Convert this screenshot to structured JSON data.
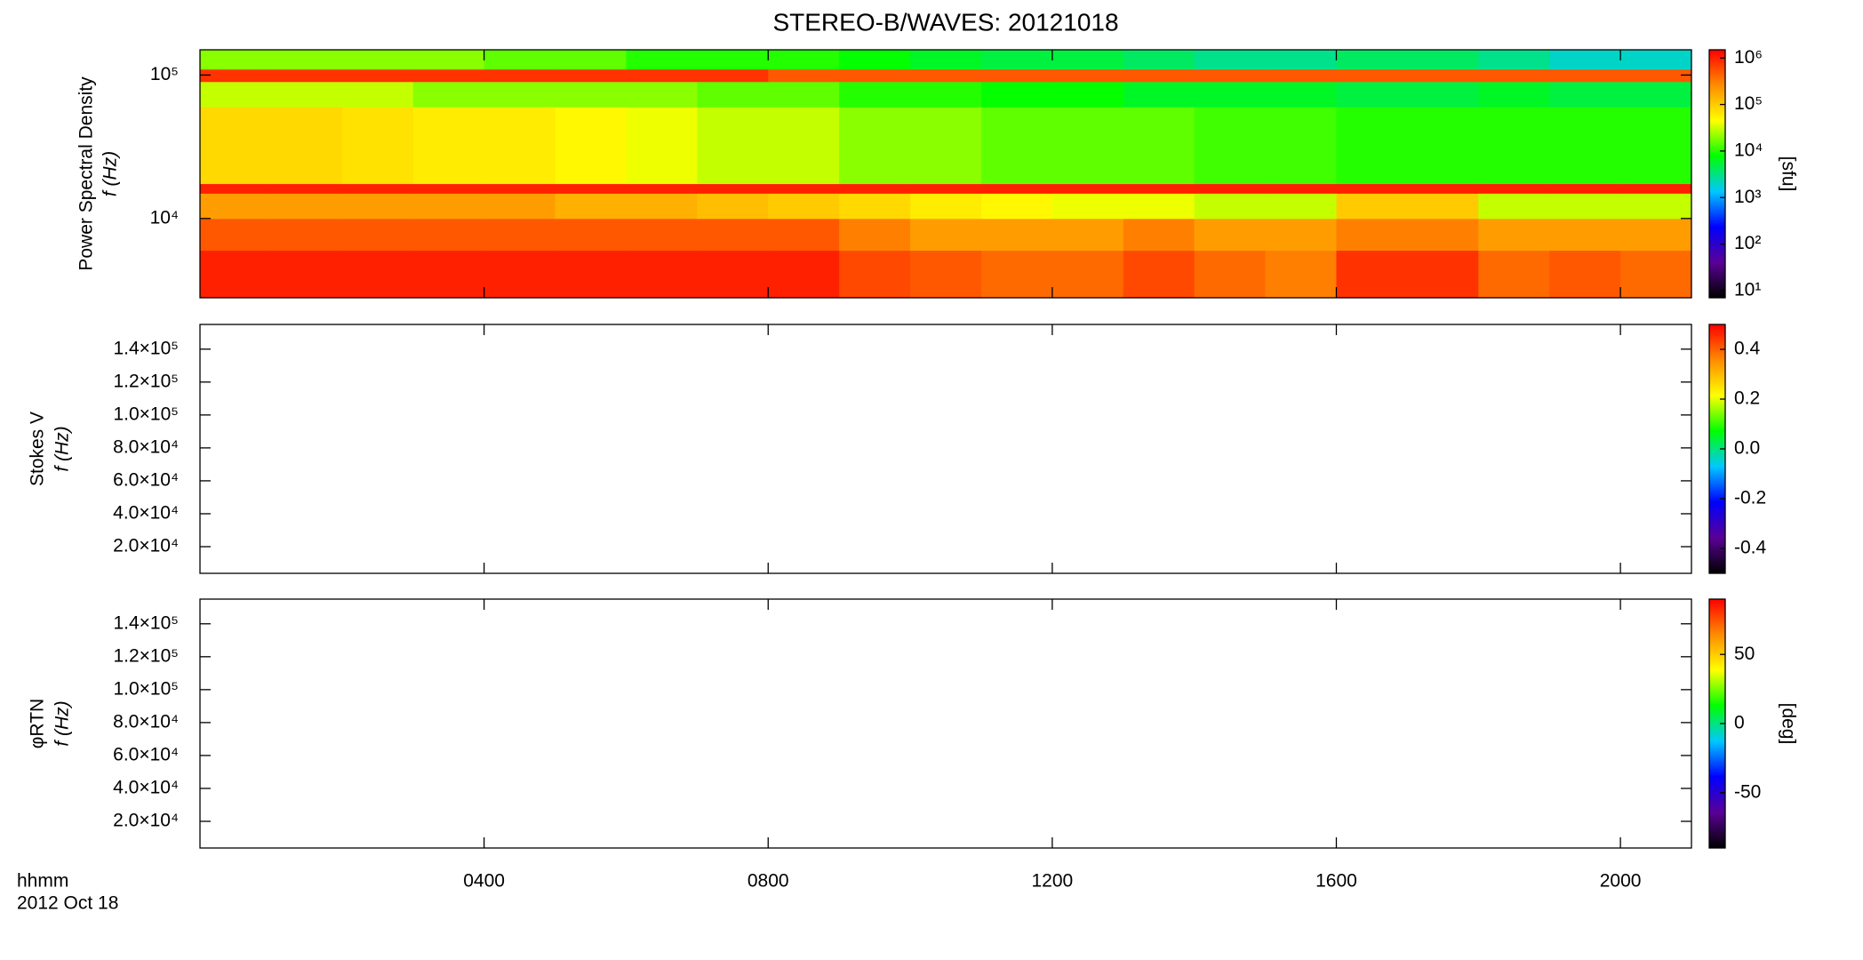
{
  "chart_data": [
    {
      "type": "spectrogram",
      "title": "STEREO-B/WAVES: 20121018",
      "ylabel": [
        "Power Spectral Density",
        "f (Hz)"
      ],
      "ylog": true,
      "ylim": [
        2800,
        150000
      ],
      "yticks": [
        {
          "value": 10000,
          "label": "10⁴"
        },
        {
          "value": 100000,
          "label": "10⁵"
        }
      ],
      "time_bins": [
        0,
        1,
        2,
        3,
        4,
        5,
        6,
        7,
        8,
        9,
        10,
        11,
        12,
        13,
        14,
        15,
        16,
        17,
        18,
        19,
        20,
        21
      ],
      "freq_bins": [
        2800,
        6000,
        10000,
        15000,
        17500,
        60000,
        90000,
        110000,
        150000
      ],
      "z": [
        [
          1000000,
          1000000,
          1000000,
          1000000,
          1000000,
          1000000,
          1000000,
          1000000,
          1000000,
          600000,
          500000,
          400000,
          400000,
          600000,
          400000,
          300000,
          800000,
          800000,
          400000,
          500000,
          400000
        ],
        [
          500000,
          500000,
          500000,
          500000,
          500000,
          500000,
          500000,
          500000,
          500000,
          300000,
          200000,
          200000,
          200000,
          300000,
          200000,
          200000,
          300000,
          300000,
          200000,
          200000,
          200000
        ],
        [
          200000,
          200000,
          200000,
          200000,
          200000,
          150000,
          150000,
          120000,
          100000,
          80000,
          60000,
          50000,
          40000,
          40000,
          30000,
          30000,
          100000,
          100000,
          30000,
          30000,
          30000
        ],
        [
          1000000,
          1000000,
          1000000,
          1000000,
          1000000,
          1000000,
          1000000,
          1000000,
          1000000,
          1000000,
          1000000,
          1000000,
          1000000,
          1000000,
          1000000,
          1000000,
          1000000,
          1000000,
          1000000,
          1000000,
          1000000
        ],
        [
          80000,
          80000,
          70000,
          60000,
          60000,
          50000,
          40000,
          30000,
          30000,
          20000,
          20000,
          15000,
          15000,
          15000,
          12000,
          12000,
          10000,
          10000,
          10000,
          10000,
          10000
        ],
        [
          30000,
          30000,
          30000,
          20000,
          20000,
          20000,
          20000,
          15000,
          15000,
          10000,
          10000,
          8000,
          8000,
          6000,
          6000,
          6000,
          5000,
          5000,
          6000,
          5000,
          5000
        ],
        [
          800000,
          800000,
          800000,
          800000,
          800000,
          800000,
          800000,
          800000,
          500000,
          500000,
          500000,
          500000,
          500000,
          500000,
          500000,
          500000,
          500000,
          500000,
          500000,
          500000,
          500000
        ],
        [
          20000,
          20000,
          20000,
          20000,
          15000,
          15000,
          10000,
          10000,
          10000,
          8000,
          6000,
          5000,
          5000,
          4000,
          3000,
          3000,
          4000,
          4000,
          3000,
          2000,
          2000
        ]
      ],
      "colormap": [
        "#000000",
        "#5a0096",
        "#0000ff",
        "#00c8ff",
        "#00ff00",
        "#ffff00",
        "#ff8c00",
        "#ff0000"
      ],
      "colorbar": {
        "log": true,
        "lim": [
          7,
          1500000
        ],
        "label": "[sfu]",
        "ticks": [
          {
            "value": 10,
            "label": "10¹"
          },
          {
            "value": 100,
            "label": "10²"
          },
          {
            "value": 1000,
            "label": "10³"
          },
          {
            "value": 10000,
            "label": "10⁴"
          },
          {
            "value": 100000,
            "label": "10⁵"
          },
          {
            "value": 1000000,
            "label": "10⁶"
          }
        ]
      }
    },
    {
      "type": "spectrogram",
      "ylabel": [
        "Stokes V",
        "f (Hz)"
      ],
      "ylog": false,
      "ylim": [
        3800,
        155000
      ],
      "yticks": [
        {
          "value": 20000,
          "label": "2.0×10⁴"
        },
        {
          "value": 40000,
          "label": "4.0×10⁴"
        },
        {
          "value": 60000,
          "label": "6.0×10⁴"
        },
        {
          "value": 80000,
          "label": "8.0×10⁴"
        },
        {
          "value": 100000,
          "label": "1.0×10⁵"
        },
        {
          "value": 120000,
          "label": "1.2×10⁵"
        },
        {
          "value": 140000,
          "label": "1.4×10⁵"
        }
      ],
      "colormap": [
        "#000000",
        "#5a0096",
        "#0000ff",
        "#00c8ff",
        "#00ff00",
        "#ffff00",
        "#ff8c00",
        "#ff0000"
      ],
      "colorbar": {
        "log": false,
        "lim": [
          -0.5,
          0.5
        ],
        "ticks": [
          -0.4,
          -0.2,
          {
            "value": 0,
            "label": "0.0"
          },
          0.2,
          0.4
        ]
      }
    },
    {
      "type": "spectrogram",
      "ylabel": [
        "φRTN",
        "f (Hz)"
      ],
      "ylog": false,
      "ylim": [
        3800,
        155000
      ],
      "yticks": [
        {
          "value": 20000,
          "label": "2.0×10⁴"
        },
        {
          "value": 40000,
          "label": "4.0×10⁴"
        },
        {
          "value": 60000,
          "label": "6.0×10⁴"
        },
        {
          "value": 80000,
          "label": "8.0×10⁴"
        },
        {
          "value": 100000,
          "label": "1.0×10⁵"
        },
        {
          "value": 120000,
          "label": "1.2×10⁵"
        },
        {
          "value": 140000,
          "label": "1.4×10⁵"
        }
      ],
      "xlim": [
        0,
        21
      ],
      "xticks": [
        {
          "value": 4,
          "label": "0400"
        },
        {
          "value": 8,
          "label": "0800"
        },
        {
          "value": 12,
          "label": "1200"
        },
        {
          "value": 16,
          "label": "1600"
        },
        {
          "value": 20,
          "label": "2000"
        }
      ],
      "xlabel": "hhmm",
      "date_label": "2012 Oct 18",
      "colormap": [
        "#000000",
        "#5a0096",
        "#0000ff",
        "#00c8ff",
        "#00ff00",
        "#ffff00",
        "#ff8c00",
        "#ff0000"
      ],
      "colorbar": {
        "log": false,
        "lim": [
          -90,
          90
        ],
        "label": "[deg]",
        "ticks": [
          -50,
          0,
          50
        ]
      }
    }
  ]
}
